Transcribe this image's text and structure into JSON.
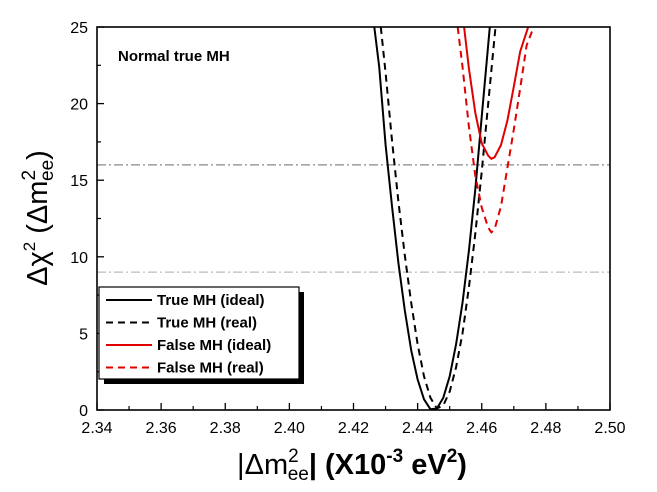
{
  "chart_data": {
    "type": "line",
    "xlabel_parts": [
      "|Δm",
      "2",
      "ee",
      "| (X10",
      "-3",
      " eV",
      "2",
      ")"
    ],
    "ylabel_parts": [
      "Δχ",
      "2",
      " (Δm",
      "2",
      "ee",
      ")"
    ],
    "annotation": "Normal true MH",
    "xlim": [
      2.34,
      2.5
    ],
    "ylim": [
      0,
      25
    ],
    "xticks": [
      "2.34",
      "2.36",
      "2.38",
      "2.40",
      "2.42",
      "2.44",
      "2.46",
      "2.48",
      "2.50"
    ],
    "yticks": [
      "0",
      "5",
      "10",
      "15",
      "20",
      "25"
    ],
    "reference_lines": [
      {
        "y": 16,
        "color": "#888888"
      },
      {
        "y": 9,
        "color": "#bbbbbb"
      }
    ],
    "series": [
      {
        "name": "True MH (ideal)",
        "color": "#000000",
        "dash": "solid",
        "x": [
          2.4265,
          2.428,
          2.43,
          2.432,
          2.434,
          2.436,
          2.438,
          2.44,
          2.442,
          2.444,
          2.446,
          2.448,
          2.45,
          2.452,
          2.454,
          2.456,
          2.458,
          2.46,
          2.4625
        ],
        "y": [
          25.0,
          22.4,
          17.3,
          13.3,
          9.6,
          6.5,
          3.9,
          2.0,
          0.7,
          0.05,
          0.1,
          0.8,
          2.2,
          4.3,
          7.0,
          10.4,
          14.4,
          19.2,
          25.0
        ]
      },
      {
        "name": "True MH (real)",
        "color": "#000000",
        "dash": "dashed",
        "x": [
          2.4285,
          2.43,
          2.432,
          2.434,
          2.436,
          2.438,
          2.44,
          2.442,
          2.444,
          2.446,
          2.448,
          2.45,
          2.452,
          2.454,
          2.456,
          2.458,
          2.46,
          2.462,
          2.4643
        ],
        "y": [
          25.0,
          22.0,
          17.6,
          13.6,
          10.1,
          7.0,
          4.3,
          2.2,
          0.8,
          0.1,
          0.3,
          1.2,
          2.8,
          5.0,
          8.0,
          11.5,
          15.6,
          20.0,
          25.0
        ]
      },
      {
        "name": "False MH (ideal)",
        "color": "#e00000",
        "dash": "solid",
        "x": [
          2.4545,
          2.456,
          2.458,
          2.46,
          2.462,
          2.463,
          2.464,
          2.466,
          2.468,
          2.47,
          2.472,
          2.4745
        ],
        "y": [
          25.0,
          22.3,
          19.4,
          17.4,
          16.6,
          16.4,
          16.5,
          17.3,
          18.9,
          21.1,
          23.4,
          25.0
        ]
      },
      {
        "name": "False MH (real)",
        "color": "#e00000",
        "dash": "dashed",
        "x": [
          2.4525,
          2.454,
          2.456,
          2.458,
          2.46,
          2.462,
          2.463,
          2.464,
          2.466,
          2.468,
          2.47,
          2.472,
          2.474,
          2.4762
        ],
        "y": [
          25.0,
          22.4,
          18.5,
          15.3,
          13.2,
          11.9,
          11.6,
          11.8,
          13.3,
          15.8,
          18.3,
          21.0,
          23.8,
          25.0
        ]
      }
    ],
    "legend_position": "bottom-left",
    "grid": false
  }
}
